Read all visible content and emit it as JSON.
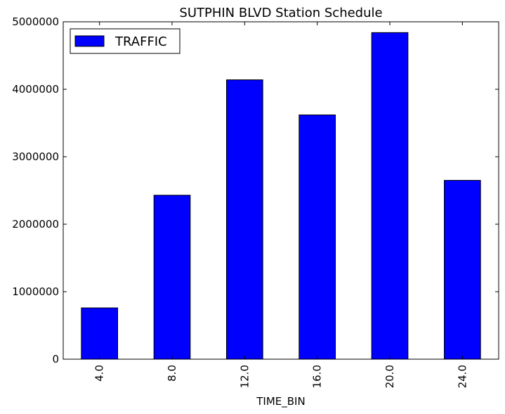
{
  "chart_data": {
    "type": "bar",
    "title": "SUTPHIN BLVD Station Schedule",
    "xlabel": "TIME_BIN",
    "ylabel": "",
    "categories": [
      "4.0",
      "8.0",
      "12.0",
      "16.0",
      "20.0",
      "24.0"
    ],
    "series": [
      {
        "name": "TRAFFIC",
        "values": [
          760000,
          2430000,
          4140000,
          3620000,
          4840000,
          2650000
        ]
      }
    ],
    "ylim": [
      0,
      5000000
    ],
    "yticks": [
      "0",
      "1000000",
      "2000000",
      "3000000",
      "4000000",
      "5000000"
    ],
    "legend": "top-left",
    "grid": false,
    "bar_color": "#0000ff"
  }
}
